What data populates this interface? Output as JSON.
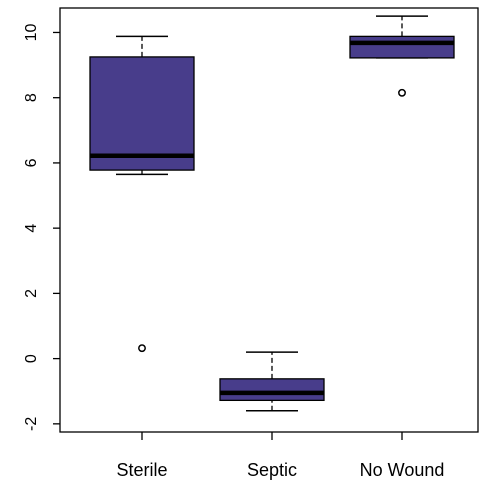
{
  "chart_data": {
    "type": "boxplot",
    "title": "",
    "xlabel": "",
    "ylabel": "",
    "ylim": [
      -2.25,
      10.75
    ],
    "y_ticks": [
      -2,
      0,
      2,
      4,
      6,
      8,
      10
    ],
    "y_tick_labels": [
      "-2",
      "0",
      "2",
      "4",
      "6",
      "8",
      "10"
    ],
    "categories": [
      "Sterile",
      "Septic",
      "No Wound"
    ],
    "fill_color": "#483D8B",
    "boxes": [
      {
        "category": "Sterile",
        "whisker_low": 5.65,
        "q1": 5.78,
        "median": 6.22,
        "q3": 9.25,
        "whisker_high": 9.88,
        "outliers": [
          0.32
        ]
      },
      {
        "category": "Septic",
        "whisker_low": -1.6,
        "q1": -1.28,
        "median": -1.05,
        "q3": -0.62,
        "whisker_high": 0.2,
        "outliers": []
      },
      {
        "category": "No Wound",
        "whisker_low": 9.22,
        "q1": 9.22,
        "median": 9.68,
        "q3": 9.88,
        "whisker_high": 10.5,
        "outliers": [
          8.15
        ]
      }
    ]
  }
}
